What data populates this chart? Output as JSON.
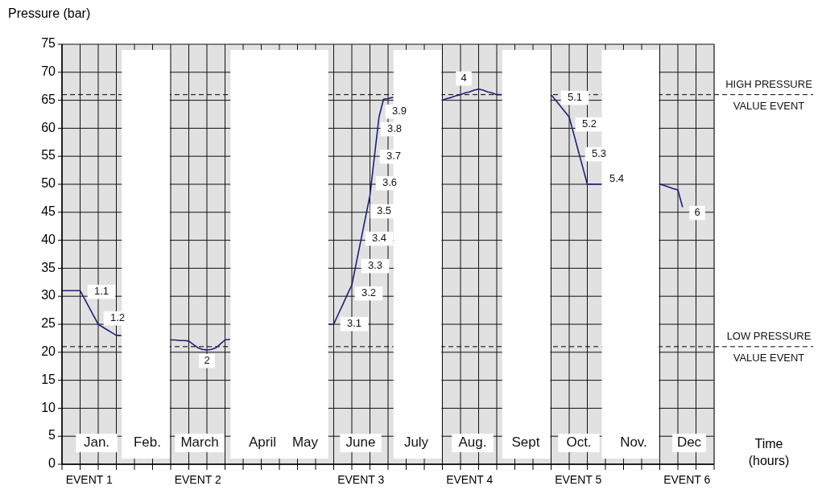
{
  "chart_data": {
    "type": "line",
    "ylabel": "Pressure (bar)",
    "xlabel": "Time\n(hours)",
    "categories": [
      null,
      null,
      null,
      null,
      null,
      null,
      "EVENT 1",
      null,
      null,
      null,
      null,
      null,
      null,
      null,
      null,
      null,
      null,
      null,
      null,
      null,
      null,
      null,
      null,
      null,
      null,
      null,
      null,
      null,
      null,
      null,
      "EVENT 2",
      null,
      null,
      null,
      null,
      null,
      null,
      null,
      null,
      null,
      null,
      null,
      null,
      null,
      null,
      null,
      null,
      null,
      null,
      null,
      null,
      null,
      null,
      null,
      null,
      null,
      null,
      null,
      null,
      null,
      null,
      null,
      null,
      null,
      null,
      null,
      "EVENT 3",
      null,
      null,
      null,
      null,
      null,
      null,
      null,
      null,
      null,
      null,
      null,
      null,
      null,
      null,
      null,
      null,
      null,
      null,
      null,
      null,
      null,
      null,
      null,
      "EVENT 4",
      null,
      null,
      null,
      null,
      null,
      null,
      null,
      null,
      null,
      null,
      null,
      null,
      null,
      null,
      null,
      null,
      null,
      null,
      null,
      null,
      null,
      null,
      null,
      "EVENT 5",
      null,
      null,
      null,
      null,
      null,
      null,
      null,
      null,
      null,
      null,
      null,
      null,
      null,
      null,
      null,
      null,
      null,
      null,
      null,
      null,
      null,
      null,
      null,
      "EVENT 6",
      null,
      null,
      null,
      null,
      null,
      null
    ],
    "ylim": [
      0,
      75
    ],
    "yticks": [
      0,
      5,
      10,
      15,
      20,
      25,
      30,
      35,
      40,
      45,
      50,
      55,
      60,
      65,
      70,
      75
    ],
    "grid": true,
    "marker": "none",
    "line_style": "solid",
    "series": [
      {
        "color": "#1f1f7a",
        "values": [
          31,
          31,
          31,
          31,
          31,
          29.5,
          28,
          26.5,
          25,
          24.5,
          24,
          23.5,
          23,
          23,
          null,
          null,
          null,
          null,
          null,
          null,
          null,
          null,
          null,
          null,
          22.2,
          22.2,
          22.1,
          22.1,
          22,
          21.4,
          20.8,
          20.5,
          20.4,
          20.5,
          20.8,
          21.5,
          22.2,
          22.3,
          null,
          null,
          null,
          null,
          null,
          null,
          null,
          null,
          null,
          null,
          null,
          null,
          null,
          null,
          null,
          null,
          null,
          null,
          null,
          null,
          null,
          25,
          25,
          26.8,
          28.5,
          30.3,
          32,
          36,
          40,
          44,
          48,
          55,
          62,
          65.2,
          65.3,
          65.5,
          null,
          null,
          null,
          null,
          null,
          null,
          null,
          null,
          null,
          null,
          65,
          65.3,
          65.5,
          65.8,
          66,
          66.3,
          66.5,
          66.8,
          67,
          66.8,
          66.5,
          66.3,
          66,
          66,
          null,
          null,
          null,
          null,
          null,
          null,
          null,
          null,
          null,
          null,
          66,
          65,
          64,
          63,
          62,
          59,
          56,
          53,
          50,
          50,
          50,
          50,
          null,
          null,
          null,
          null,
          null,
          null,
          null,
          null,
          null,
          null,
          null,
          null,
          50,
          49.8,
          49.5,
          49.2,
          49,
          46,
          null,
          null,
          null,
          null,
          null,
          null,
          null
        ],
        "name": null
      }
    ],
    "ref_lines": [
      {
        "axis": "y",
        "value": 66,
        "label": "HIGH PRESSURE\nVALUE  EVENT",
        "line_style": "dashed",
        "color": "#000000"
      },
      {
        "axis": "y",
        "value": 21,
        "label": "LOW PRESSURE\nVALUE  EVENT",
        "line_style": "dashed",
        "color": "#000000"
      }
    ],
    "annotations": [
      "1.1",
      "1.2",
      "2",
      "3.1",
      "3.2",
      "3.3",
      "3.4",
      "3.5",
      "3.6",
      "3.7",
      "3.8",
      "3.9",
      "4",
      "5.1",
      "5.2",
      "5.3",
      "5.4",
      "6",
      "Jan.",
      "Feb.",
      "March",
      "April",
      "May",
      "June",
      "July",
      "Aug.",
      "Sept",
      "Oct.",
      "Nov.",
      "Dec"
    ]
  }
}
